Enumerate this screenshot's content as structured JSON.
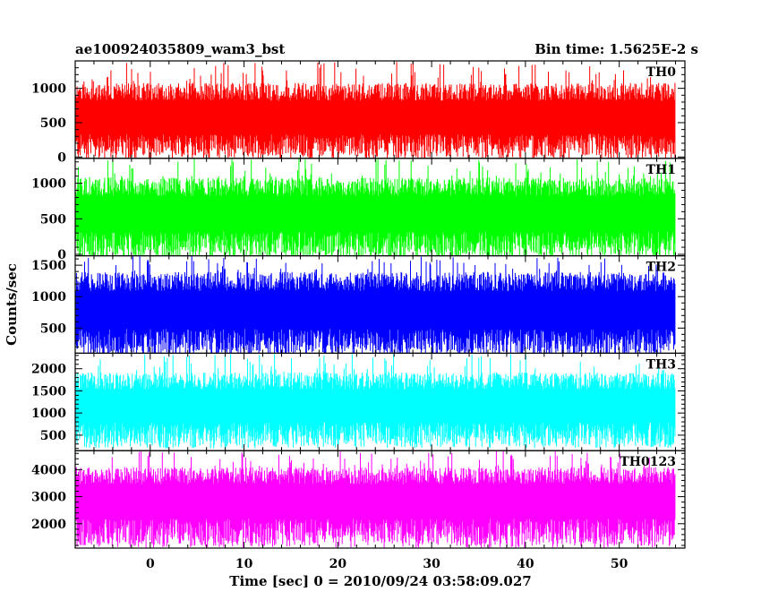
{
  "chart_data": {
    "type": "line",
    "title_left": "ae100924035809_wam3_bst",
    "title_right": "Bin time: 1.5625E-2 s",
    "xlabel": "Time [sec] 0 = 2010/09/24 03:58:09.027",
    "ylabel": "Counts/sec",
    "xlim": [
      -8,
      57
    ],
    "xticks": [
      0,
      10,
      20,
      30,
      40,
      50
    ],
    "grid": false,
    "panels": [
      {
        "name": "TH0",
        "color": "#ff0000",
        "ylim": [
          -20,
          1400
        ],
        "yticks": [
          0,
          500,
          1000
        ],
        "x_range": [
          -8,
          56
        ],
        "envelope": {
          "min": 20,
          "low": 150,
          "mean": 560,
          "high": 1000,
          "max": 1400
        }
      },
      {
        "name": "TH1",
        "color": "#00ff00",
        "ylim": [
          -20,
          1350
        ],
        "yticks": [
          0,
          500,
          1000
        ],
        "x_range": [
          -8,
          56
        ],
        "envelope": {
          "min": 20,
          "low": 120,
          "mean": 570,
          "high": 1000,
          "max": 1350
        }
      },
      {
        "name": "TH2",
        "color": "#0000ff",
        "ylim": [
          100,
          1650
        ],
        "yticks": [
          500,
          1000,
          1500
        ],
        "x_range": [
          -8,
          56
        ],
        "envelope": {
          "min": 120,
          "low": 250,
          "mean": 780,
          "high": 1300,
          "max": 1650
        }
      },
      {
        "name": "TH3",
        "color": "#00ffff",
        "ylim": [
          150,
          2350
        ],
        "yticks": [
          500,
          1000,
          1500,
          2000
        ],
        "x_range": [
          -8,
          56
        ],
        "envelope": {
          "min": 200,
          "low": 500,
          "mean": 1150,
          "high": 1800,
          "max": 2350
        }
      },
      {
        "name": "TH0123",
        "color": "#ff00ff",
        "ylim": [
          1100,
          4700
        ],
        "yticks": [
          2000,
          3000,
          4000
        ],
        "x_range": [
          -8,
          56
        ],
        "envelope": {
          "min": 1150,
          "low": 1650,
          "mean": 2850,
          "high": 3900,
          "max": 4700
        }
      }
    ]
  }
}
